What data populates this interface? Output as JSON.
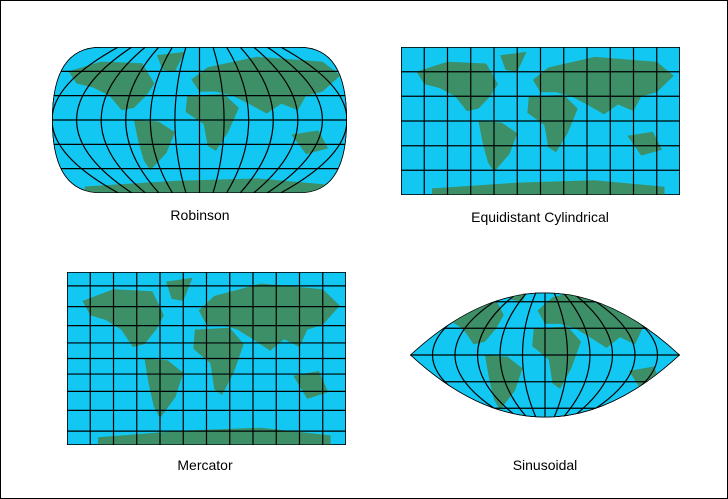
{
  "panels": [
    {
      "label": "Robinson"
    },
    {
      "label": "Equidistant Cylindrical"
    },
    {
      "label": "Mercator"
    },
    {
      "label": "Sinusoidal"
    }
  ]
}
